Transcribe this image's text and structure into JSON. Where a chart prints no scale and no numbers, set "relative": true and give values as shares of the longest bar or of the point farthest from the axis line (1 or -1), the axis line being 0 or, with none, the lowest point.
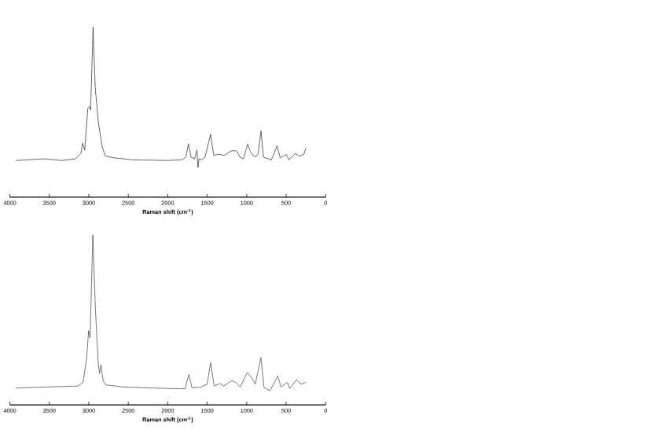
{
  "chart_data": [
    {
      "type": "line",
      "relative": true,
      "xlabel": "Raman shift (cm$^{-1}$)",
      "xlim": [
        4000,
        0
      ],
      "xticks": [
        4000,
        3500,
        3000,
        2500,
        2000,
        1500,
        1000,
        500,
        0
      ],
      "marker": "none",
      "line_style": "solid",
      "series": [
        {
          "color": "#1a1a1a",
          "x": [
            3920,
            3566,
            3344,
            3167,
            3101,
            3079,
            3052,
            3012,
            2990,
            2977,
            2946,
            2919,
            2879,
            2848,
            2831,
            2791,
            2680,
            2458,
            2015,
            1816,
            1772,
            1737,
            1705,
            1661,
            1630,
            1617,
            1604,
            1573,
            1528,
            1457,
            1417,
            1351,
            1285,
            1196,
            1130,
            1085,
            1041,
            988,
            943,
            886,
            855,
            819,
            788,
            687,
            616,
            576,
            496,
            465,
            385,
            332,
            275,
            253
          ],
          "values": [
            0.216,
            0.226,
            0.216,
            0.226,
            0.257,
            0.318,
            0.277,
            0.524,
            0.534,
            0.513,
            1.0,
            0.647,
            0.441,
            0.349,
            0.298,
            0.242,
            0.232,
            0.22,
            0.216,
            0.22,
            0.236,
            0.314,
            0.236,
            0.226,
            0.277,
            0.175,
            0.226,
            0.22,
            0.236,
            0.37,
            0.246,
            0.253,
            0.246,
            0.273,
            0.273,
            0.236,
            0.226,
            0.312,
            0.257,
            0.236,
            0.257,
            0.39,
            0.236,
            0.22,
            0.302,
            0.232,
            0.251,
            0.22,
            0.257,
            0.242,
            0.253,
            0.287
          ]
        }
      ]
    },
    {
      "type": "line",
      "relative": true,
      "xlabel": "Raman shift (cm$^{-1}$)",
      "xlim": [
        4000,
        0
      ],
      "xticks": [
        4000,
        3500,
        3000,
        2500,
        2000,
        1500,
        1000,
        500,
        0
      ],
      "marker": "none",
      "line_style": "solid",
      "series": [
        {
          "color": "#333333",
          "x": [
            3920,
            3563,
            3140,
            3073,
            3029,
            3002,
            2984,
            2949,
            2918,
            2882,
            2864,
            2846,
            2820,
            2784,
            2561,
            2027,
            1782,
            1733,
            1693,
            1581,
            1501,
            1457,
            1412,
            1336,
            1292,
            1189,
            1136,
            1082,
            993,
            949,
            891,
            820,
            780,
            704,
            606,
            566,
            486,
            454,
            370,
            312,
            254
          ],
          "values": [
            0.099,
            0.105,
            0.111,
            0.132,
            0.269,
            0.437,
            0.395,
            1.0,
            0.584,
            0.248,
            0.185,
            0.237,
            0.143,
            0.118,
            0.105,
            0.097,
            0.095,
            0.179,
            0.101,
            0.105,
            0.122,
            0.248,
            0.111,
            0.126,
            0.111,
            0.143,
            0.132,
            0.105,
            0.191,
            0.168,
            0.122,
            0.279,
            0.101,
            0.084,
            0.17,
            0.105,
            0.132,
            0.097,
            0.147,
            0.122,
            0.132
          ]
        }
      ]
    }
  ]
}
